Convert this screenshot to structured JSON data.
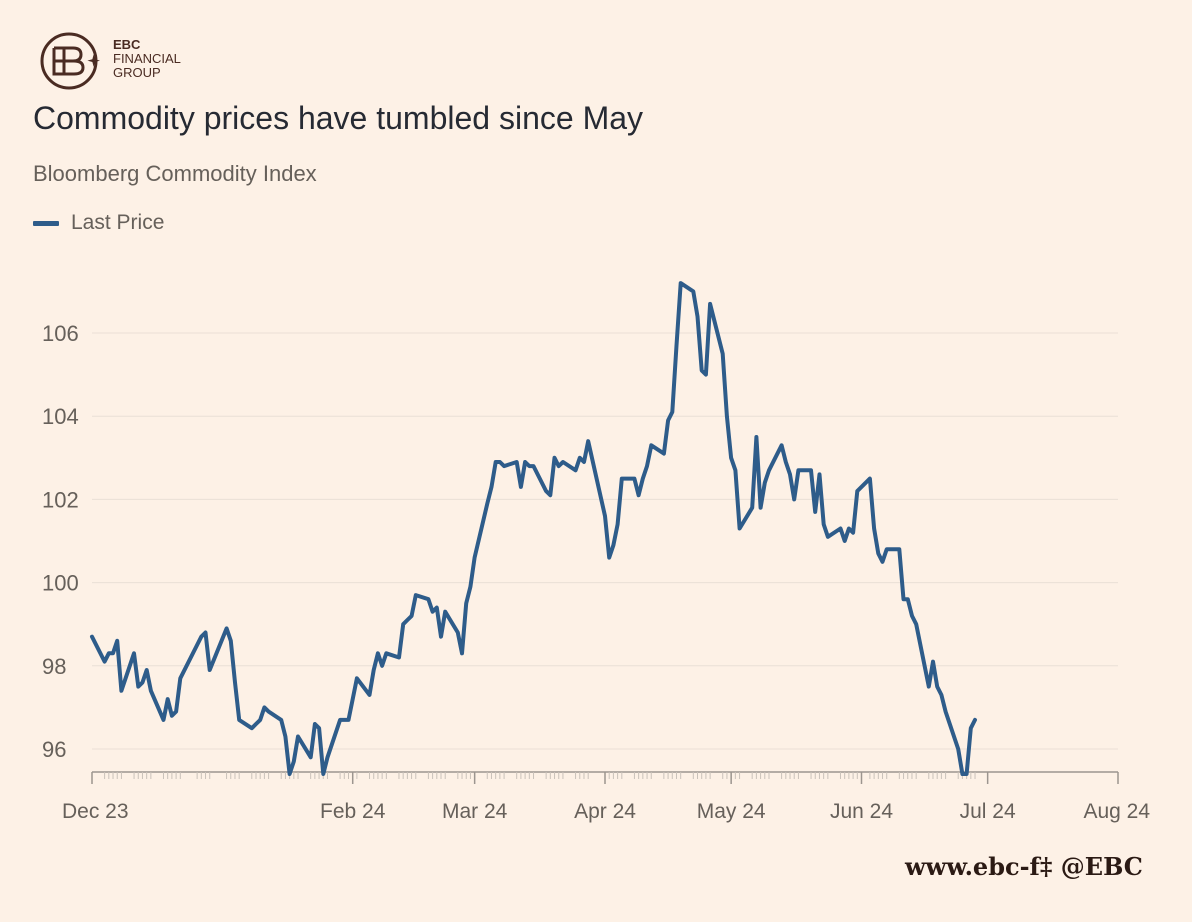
{
  "brand": {
    "line1": "EBC",
    "line2": "FINANCIAL",
    "line3": "GROUP",
    "color": "#4a2b22"
  },
  "watermark": "www.ebc-f‡ @EBC",
  "chart_data": {
    "type": "line",
    "title": "Commodity prices have tumbled since May",
    "subtitle": "Bloomberg Commodity Index",
    "xlabel": "",
    "ylabel": "",
    "ylim": [
      95.4,
      107.4
    ],
    "yticks": [
      "96",
      "98",
      "100",
      "102",
      "104",
      "106"
    ],
    "ytick_values": [
      96,
      98,
      100,
      102,
      104,
      106
    ],
    "xticks": [
      "Dec 23",
      "Feb 24",
      "Mar 24",
      "Apr 24",
      "May 24",
      "Jun 24",
      "Jul 24",
      "Aug 24"
    ],
    "xtick_dates": [
      "2023-12-01",
      "2024-02-01",
      "2024-03-01",
      "2024-04-01",
      "2024-05-01",
      "2024-06-01",
      "2024-07-01",
      "2024-08-01"
    ],
    "grid": true,
    "legend_position": "top-left",
    "colors": {
      "line": "#2e5c8a",
      "grid": "#eae0d6",
      "axis": "#9c958f",
      "tick_label": "#66605a"
    },
    "series": [
      {
        "name": "Last Price",
        "points": [
          [
            "2023-12-01",
            98.7
          ],
          [
            "2023-12-04",
            98.1
          ],
          [
            "2023-12-05",
            98.3
          ],
          [
            "2023-12-06",
            98.3
          ],
          [
            "2023-12-07",
            98.6
          ],
          [
            "2023-12-08",
            97.4
          ],
          [
            "2023-12-11",
            98.3
          ],
          [
            "2023-12-12",
            97.5
          ],
          [
            "2023-12-13",
            97.6
          ],
          [
            "2023-12-14",
            97.9
          ],
          [
            "2023-12-15",
            97.4
          ],
          [
            "2023-12-18",
            96.7
          ],
          [
            "2023-12-19",
            97.2
          ],
          [
            "2023-12-20",
            96.8
          ],
          [
            "2023-12-21",
            96.9
          ],
          [
            "2023-12-22",
            97.7
          ],
          [
            "2023-12-26",
            98.5
          ],
          [
            "2023-12-27",
            98.7
          ],
          [
            "2023-12-28",
            98.8
          ],
          [
            "2023-12-29",
            97.9
          ],
          [
            "2024-01-02",
            98.9
          ],
          [
            "2024-01-03",
            98.6
          ],
          [
            "2024-01-04",
            97.6
          ],
          [
            "2024-01-05",
            96.7
          ],
          [
            "2024-01-08",
            96.5
          ],
          [
            "2024-01-09",
            96.6
          ],
          [
            "2024-01-10",
            96.7
          ],
          [
            "2024-01-11",
            97.0
          ],
          [
            "2024-01-12",
            96.9
          ],
          [
            "2024-01-15",
            96.7
          ],
          [
            "2024-01-16",
            96.3
          ],
          [
            "2024-01-17",
            95.4
          ],
          [
            "2024-01-18",
            95.7
          ],
          [
            "2024-01-19",
            96.3
          ],
          [
            "2024-01-22",
            95.8
          ],
          [
            "2024-01-23",
            96.6
          ],
          [
            "2024-01-24",
            96.5
          ],
          [
            "2024-01-25",
            95.4
          ],
          [
            "2024-01-26",
            95.8
          ],
          [
            "2024-01-29",
            96.7
          ],
          [
            "2024-01-30",
            96.7
          ],
          [
            "2024-01-31",
            96.7
          ],
          [
            "2024-02-01",
            97.2
          ],
          [
            "2024-02-02",
            97.7
          ],
          [
            "2024-02-05",
            97.3
          ],
          [
            "2024-02-06",
            97.9
          ],
          [
            "2024-02-07",
            98.3
          ],
          [
            "2024-02-08",
            98.0
          ],
          [
            "2024-02-09",
            98.3
          ],
          [
            "2024-02-12",
            98.2
          ],
          [
            "2024-02-13",
            99.0
          ],
          [
            "2024-02-14",
            99.1
          ],
          [
            "2024-02-15",
            99.2
          ],
          [
            "2024-02-16",
            99.7
          ],
          [
            "2024-02-19",
            99.6
          ],
          [
            "2024-02-20",
            99.3
          ],
          [
            "2024-02-21",
            99.4
          ],
          [
            "2024-02-22",
            98.7
          ],
          [
            "2024-02-23",
            99.3
          ],
          [
            "2024-02-26",
            98.8
          ],
          [
            "2024-02-27",
            98.3
          ],
          [
            "2024-02-28",
            99.5
          ],
          [
            "2024-02-29",
            99.9
          ],
          [
            "2024-03-01",
            100.6
          ],
          [
            "2024-03-04",
            101.9
          ],
          [
            "2024-03-05",
            102.3
          ],
          [
            "2024-03-06",
            102.9
          ],
          [
            "2024-03-07",
            102.9
          ],
          [
            "2024-03-08",
            102.8
          ],
          [
            "2024-03-11",
            102.9
          ],
          [
            "2024-03-12",
            102.3
          ],
          [
            "2024-03-13",
            102.9
          ],
          [
            "2024-03-14",
            102.8
          ],
          [
            "2024-03-15",
            102.8
          ],
          [
            "2024-03-18",
            102.2
          ],
          [
            "2024-03-19",
            102.1
          ],
          [
            "2024-03-20",
            103.0
          ],
          [
            "2024-03-21",
            102.8
          ],
          [
            "2024-03-22",
            102.9
          ],
          [
            "2024-03-25",
            102.7
          ],
          [
            "2024-03-26",
            103.0
          ],
          [
            "2024-03-27",
            102.9
          ],
          [
            "2024-03-28",
            103.4
          ],
          [
            "2024-04-01",
            101.6
          ],
          [
            "2024-04-02",
            100.6
          ],
          [
            "2024-04-03",
            100.9
          ],
          [
            "2024-04-04",
            101.4
          ],
          [
            "2024-04-05",
            102.5
          ],
          [
            "2024-04-08",
            102.5
          ],
          [
            "2024-04-09",
            102.1
          ],
          [
            "2024-04-10",
            102.5
          ],
          [
            "2024-04-11",
            102.8
          ],
          [
            "2024-04-12",
            103.3
          ],
          [
            "2024-04-15",
            103.1
          ],
          [
            "2024-04-16",
            103.9
          ],
          [
            "2024-04-17",
            104.1
          ],
          [
            "2024-04-18",
            105.7
          ],
          [
            "2024-04-19",
            107.2
          ],
          [
            "2024-04-22",
            107.0
          ],
          [
            "2024-04-23",
            106.4
          ],
          [
            "2024-04-24",
            105.1
          ],
          [
            "2024-04-25",
            105.0
          ],
          [
            "2024-04-26",
            106.7
          ],
          [
            "2024-04-29",
            105.5
          ],
          [
            "2024-04-30",
            104.0
          ],
          [
            "2024-05-01",
            103.0
          ],
          [
            "2024-05-02",
            102.7
          ],
          [
            "2024-05-03",
            101.3
          ],
          [
            "2024-05-06",
            101.8
          ],
          [
            "2024-05-07",
            103.5
          ],
          [
            "2024-05-08",
            101.8
          ],
          [
            "2024-05-09",
            102.4
          ],
          [
            "2024-05-10",
            102.7
          ],
          [
            "2024-05-13",
            103.3
          ],
          [
            "2024-05-14",
            102.9
          ],
          [
            "2024-05-15",
            102.6
          ],
          [
            "2024-05-16",
            102.0
          ],
          [
            "2024-05-17",
            102.7
          ],
          [
            "2024-05-20",
            102.7
          ],
          [
            "2024-05-21",
            101.7
          ],
          [
            "2024-05-22",
            102.6
          ],
          [
            "2024-05-23",
            101.4
          ],
          [
            "2024-05-24",
            101.1
          ],
          [
            "2024-05-27",
            101.3
          ],
          [
            "2024-05-28",
            101.0
          ],
          [
            "2024-05-29",
            101.3
          ],
          [
            "2024-05-30",
            101.2
          ],
          [
            "2024-05-31",
            102.2
          ],
          [
            "2024-06-03",
            102.5
          ],
          [
            "2024-06-04",
            101.3
          ],
          [
            "2024-06-05",
            100.7
          ],
          [
            "2024-06-06",
            100.5
          ],
          [
            "2024-06-07",
            100.8
          ],
          [
            "2024-06-10",
            100.8
          ],
          [
            "2024-06-11",
            99.6
          ],
          [
            "2024-06-12",
            99.6
          ],
          [
            "2024-06-13",
            99.2
          ],
          [
            "2024-06-14",
            99.0
          ],
          [
            "2024-06-17",
            97.5
          ],
          [
            "2024-06-18",
            98.1
          ],
          [
            "2024-06-19",
            97.5
          ],
          [
            "2024-06-20",
            97.3
          ],
          [
            "2024-06-21",
            96.9
          ],
          [
            "2024-06-24",
            96.0
          ],
          [
            "2024-06-25",
            95.4
          ],
          [
            "2024-06-26",
            95.4
          ],
          [
            "2024-06-27",
            96.5
          ],
          [
            "2024-06-28",
            96.7
          ]
        ]
      }
    ]
  }
}
